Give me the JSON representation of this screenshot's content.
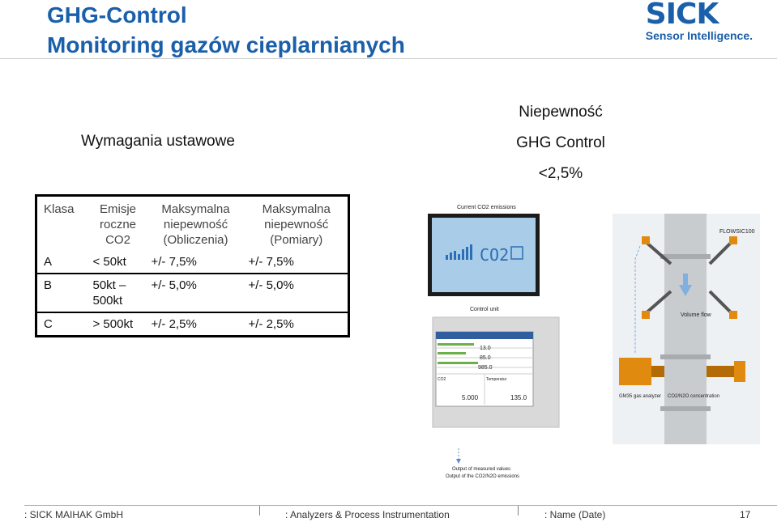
{
  "header": {
    "title_line1": "GHG-Control",
    "title_line2": "Monitoring gazów cieplarnianych",
    "logo_word": "SICK",
    "logo_tagline": "Sensor Intelligence."
  },
  "requirements_heading": "Wymagania ustawowe",
  "uncertainty": {
    "line1": "Niepewność",
    "line2": "GHG Control",
    "line3": "<2,5%"
  },
  "table": {
    "headers": {
      "klasa": "Klasa",
      "emisje": "Emisje roczne CO2",
      "calc": "Maksymalna niepewność (Obliczenia)",
      "meas": "Maksymalna niepewność (Pomiary)"
    },
    "rows": [
      {
        "klasa": "A",
        "emisje": "< 50kt",
        "calc": "+/- 7,5%",
        "meas": "+/- 7,5%"
      },
      {
        "klasa": "B",
        "emisje": "50kt – 500kt",
        "calc": "+/- 5,0%",
        "meas": "+/- 5,0%"
      },
      {
        "klasa": "C",
        "emisje": "> 500kt",
        "calc": "+/- 2,5%",
        "meas": "+/- 2,5%"
      }
    ]
  },
  "illustration": {
    "current_label": "Current CO2 emissions",
    "co2_display": "CO2",
    "control_unit": "Control unit",
    "flowsic": "FLOWSIC100",
    "volume_flow": "Volume flow",
    "gm35": "GM35 gas analyzer",
    "concentration": "CO2/N2O concentration",
    "output_line1": "Output of measured values",
    "output_line2": "Output of the CO2/N2O emissions",
    "screen": {
      "val1": "13.0",
      "val2": "85.0",
      "val3": "985.0",
      "label_co2": "CO2",
      "label_temp": "Temperatur",
      "val_left": "5.000",
      "val_right": "135.0"
    }
  },
  "footer": {
    "company": ": SICK MAIHAK GmbH",
    "division": ": Analyzers & Process Instrumentation",
    "name": ": Name (Date)",
    "page": "17"
  },
  "colors": {
    "title_blue": "#1a5faa",
    "pipe_gray": "#c9ccce",
    "analyzer_orange": "#e08a10"
  }
}
